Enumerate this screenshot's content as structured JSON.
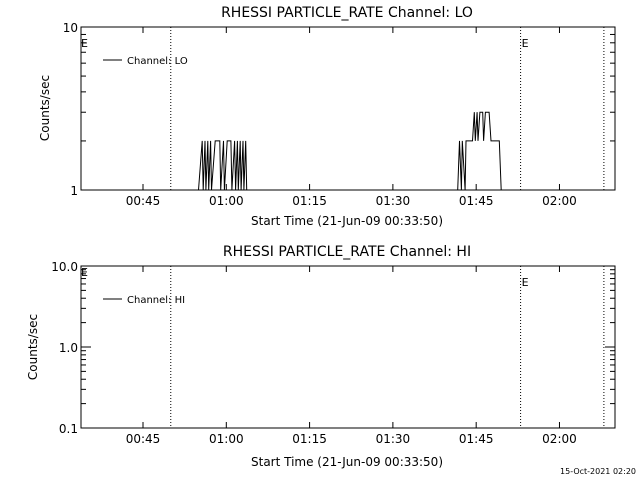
{
  "footer_timestamp": "15-Oct-2021 02:20",
  "chart_data": [
    {
      "type": "line",
      "title": "RHESSI PARTICLE_RATE Channel: LO",
      "xlabel": "Start Time (21-Jun-09 00:33:50)",
      "ylabel": "Counts/sec",
      "yscale": "log",
      "ylim": [
        1,
        10
      ],
      "y_tick_values": [
        1,
        10
      ],
      "y_tick_labels": [
        "1",
        "10"
      ],
      "xlim": [
        "00:33:50",
        "02:10:00"
      ],
      "x_ticks": [
        "00:45",
        "01:00",
        "01:15",
        "01:30",
        "01:45",
        "02:00"
      ],
      "legend": {
        "position": "top-left",
        "entries": [
          "Channel: LO"
        ]
      },
      "event_markers": [
        {
          "time": "00:50:00",
          "label": ""
        },
        {
          "time": "01:53:00",
          "label": "E"
        },
        {
          "time": "02:08:00",
          "label": ""
        }
      ],
      "start_marker_label": "E",
      "series": [
        {
          "name": "Channel: LO",
          "x": [
            "00:33:50",
            "00:55:00",
            "00:55:40",
            "00:55:50",
            "00:56:10",
            "00:56:20",
            "00:56:40",
            "00:56:50",
            "00:57:10",
            "00:57:20",
            "00:58:00",
            "00:58:10",
            "00:58:50",
            "00:59:00",
            "00:59:30",
            "00:59:40",
            "01:00:10",
            "01:00:20",
            "01:00:50",
            "01:01:00",
            "01:01:30",
            "01:01:40",
            "01:02:00",
            "01:02:10",
            "01:02:30",
            "01:02:40",
            "01:03:00",
            "01:03:10",
            "01:03:30",
            "01:03:40",
            "01:39:00",
            "01:41:40",
            "01:42:00",
            "01:42:20",
            "01:42:30",
            "01:43:00",
            "01:43:10",
            "01:43:40",
            "01:43:50",
            "01:44:10",
            "01:44:20",
            "01:44:40",
            "01:44:50",
            "01:45:10",
            "01:45:20",
            "01:45:40",
            "01:45:50",
            "01:46:10",
            "01:46:20",
            "01:46:40",
            "01:46:50",
            "01:47:10",
            "01:47:20",
            "01:47:40",
            "01:47:50",
            "01:48:10",
            "01:48:20",
            "01:48:40",
            "01:48:50",
            "01:49:00",
            "01:49:10",
            "01:49:30",
            "01:50:00",
            "02:10:00"
          ],
          "y": [
            1,
            1,
            2,
            1,
            2,
            1,
            2,
            1,
            2,
            1,
            2,
            2,
            2,
            1,
            2,
            1,
            2,
            2,
            2,
            1,
            2,
            1,
            2,
            1,
            2,
            1,
            2,
            1,
            2,
            1,
            1,
            1,
            2,
            1,
            2,
            1,
            2,
            2,
            2,
            2,
            2,
            3,
            2,
            3,
            2,
            3,
            3,
            3,
            2,
            3,
            3,
            3,
            3,
            2,
            2,
            2,
            2,
            2,
            2,
            2,
            2,
            1,
            1,
            1
          ]
        }
      ]
    },
    {
      "type": "line",
      "title": "RHESSI PARTICLE_RATE Channel: HI",
      "xlabel": "Start Time (21-Jun-09 00:33:50)",
      "ylabel": "Counts/sec",
      "yscale": "log",
      "ylim": [
        0.1,
        10
      ],
      "y_tick_values": [
        0.1,
        1,
        10
      ],
      "y_tick_labels": [
        "0.1",
        "1.0",
        "10.0"
      ],
      "xlim": [
        "00:33:50",
        "02:10:00"
      ],
      "x_ticks": [
        "00:45",
        "01:00",
        "01:15",
        "01:30",
        "01:45",
        "02:00"
      ],
      "legend": {
        "position": "top-left",
        "entries": [
          "Channel: HI"
        ]
      },
      "event_markers": [
        {
          "time": "00:50:00",
          "label": ""
        },
        {
          "time": "01:53:00",
          "label": "E"
        },
        {
          "time": "02:08:00",
          "label": ""
        }
      ],
      "start_marker_label": "E",
      "series": [
        {
          "name": "Channel: HI",
          "x": [],
          "y": []
        }
      ]
    }
  ]
}
